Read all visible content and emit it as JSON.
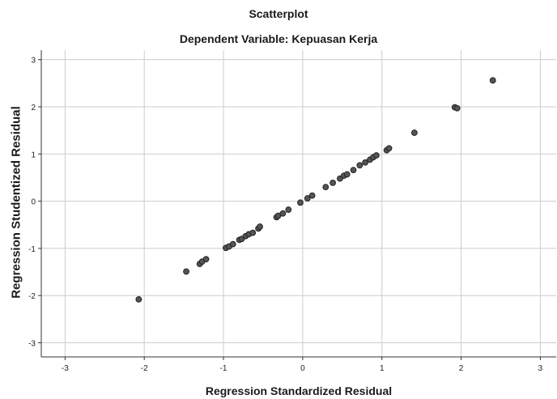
{
  "chart_data": {
    "type": "scatter",
    "title": "Scatterplot",
    "subtitle": "Dependent Variable: Kepuasan Kerja",
    "xlabel": "Regression Standardized Residual",
    "ylabel": "Regression Studentized Residual",
    "xlim": [
      -3.3,
      3.2
    ],
    "ylim": [
      -3.3,
      3.2
    ],
    "xticks": [
      "-3",
      "-2",
      "-1",
      "0",
      "1",
      "2",
      "3"
    ],
    "yticks": [
      "3",
      "2",
      "1",
      "0",
      "-1",
      "-2",
      "-3"
    ],
    "grid": true,
    "points": [
      {
        "x": -2.07,
        "y": -2.08
      },
      {
        "x": -1.47,
        "y": -1.49
      },
      {
        "x": -1.3,
        "y": -1.33
      },
      {
        "x": -1.27,
        "y": -1.28
      },
      {
        "x": -1.22,
        "y": -1.23
      },
      {
        "x": -0.97,
        "y": -0.99
      },
      {
        "x": -0.93,
        "y": -0.96
      },
      {
        "x": -0.88,
        "y": -0.91
      },
      {
        "x": -0.8,
        "y": -0.82
      },
      {
        "x": -0.77,
        "y": -0.8
      },
      {
        "x": -0.72,
        "y": -0.74
      },
      {
        "x": -0.68,
        "y": -0.7
      },
      {
        "x": -0.63,
        "y": -0.67
      },
      {
        "x": -0.56,
        "y": -0.58
      },
      {
        "x": -0.54,
        "y": -0.54
      },
      {
        "x": -0.33,
        "y": -0.34
      },
      {
        "x": -0.31,
        "y": -0.31
      },
      {
        "x": -0.25,
        "y": -0.26
      },
      {
        "x": -0.18,
        "y": -0.18
      },
      {
        "x": -0.03,
        "y": -0.03
      },
      {
        "x": 0.06,
        "y": 0.06
      },
      {
        "x": 0.12,
        "y": 0.12
      },
      {
        "x": 0.29,
        "y": 0.3
      },
      {
        "x": 0.38,
        "y": 0.39
      },
      {
        "x": 0.47,
        "y": 0.48
      },
      {
        "x": 0.52,
        "y": 0.54
      },
      {
        "x": 0.56,
        "y": 0.57
      },
      {
        "x": 0.64,
        "y": 0.66
      },
      {
        "x": 0.72,
        "y": 0.76
      },
      {
        "x": 0.79,
        "y": 0.82
      },
      {
        "x": 0.85,
        "y": 0.88
      },
      {
        "x": 0.89,
        "y": 0.93
      },
      {
        "x": 0.93,
        "y": 0.97
      },
      {
        "x": 1.06,
        "y": 1.08
      },
      {
        "x": 1.09,
        "y": 1.12
      },
      {
        "x": 1.41,
        "y": 1.45
      },
      {
        "x": 1.92,
        "y": 1.99
      },
      {
        "x": 1.95,
        "y": 1.97
      },
      {
        "x": 2.4,
        "y": 2.56
      }
    ],
    "colors": {
      "point_fill": "#555555",
      "point_stroke": "#222222",
      "grid": "#cccccc",
      "axis": "#333333"
    }
  }
}
